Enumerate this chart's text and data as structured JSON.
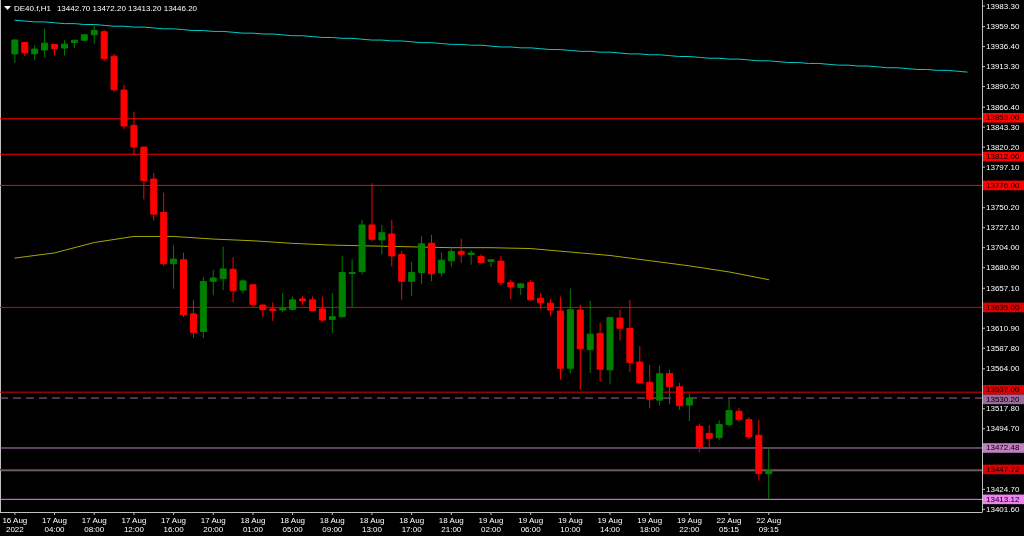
{
  "chart_data": {
    "type": "candlestick",
    "title": "DE40.f,H1",
    "subtitle": "13442.70 13472.20 13413.20 13446.20",
    "categories": [
      "16 Aug 2022",
      null,
      null,
      null,
      "17 Aug 04:00",
      null,
      null,
      null,
      "17 Aug 08:00",
      null,
      null,
      null,
      "17 Aug 12:00",
      null,
      null,
      null,
      "17 Aug 16:00",
      null,
      null,
      null,
      "17 Aug 20:00",
      null,
      null,
      null,
      "18 Aug 01:00",
      null,
      null,
      null,
      "18 Aug 05:00",
      null,
      null,
      null,
      "18 Aug 09:00",
      null,
      null,
      null,
      "18 Aug 13:00",
      null,
      null,
      null,
      "18 Aug 17:00",
      null,
      null,
      null,
      "18 Aug 21:00",
      null,
      null,
      null,
      "19 Aug 02:00",
      null,
      null,
      null,
      "19 Aug 06:00",
      null,
      null,
      null,
      "19 Aug 10:00",
      null,
      null,
      null,
      "19 Aug 14:00",
      null,
      null,
      null,
      "19 Aug 18:00",
      null,
      null,
      null,
      "19 Aug 22:00",
      null,
      null,
      null,
      "22 Aug 05:15",
      null,
      null,
      null,
      "22 Aug 09:15",
      null,
      null,
      null,
      null,
      null,
      null,
      null,
      null,
      null,
      null,
      null,
      null,
      null,
      null,
      null,
      null,
      null,
      null,
      null,
      null
    ],
    "ohlc": [
      [
        13928.0,
        13944.5,
        13917.5,
        13944.1
      ],
      [
        13941.2,
        13942.0,
        13925.4,
        13929.4
      ],
      [
        13928.3,
        13938.1,
        13921.2,
        13933.6
      ],
      [
        13932.5,
        13957.3,
        13924.3,
        13940.4
      ],
      [
        13938.9,
        13939.5,
        13926.1,
        13934.0
      ],
      [
        13934.8,
        13943.8,
        13926.1,
        13939.3
      ],
      [
        13941.2,
        13944.5,
        13934.8,
        13943.8
      ],
      [
        13943.8,
        13951.0,
        13943.0,
        13950.2
      ],
      [
        13950.2,
        13960.7,
        13939.3,
        13955.1
      ],
      [
        13953.6,
        13955.9,
        13919.7,
        13922.7
      ],
      [
        13925.4,
        13928.0,
        13883.9,
        13886.5
      ],
      [
        13886.2,
        13892.2,
        13841.3,
        13844.7
      ],
      [
        13845.5,
        13861.3,
        13811.3,
        13820.3
      ],
      [
        13820.3,
        13821.0,
        13760.0,
        13781.5
      ],
      [
        13783.4,
        13790.2,
        13735.2,
        13742.8
      ],
      [
        13744.7,
        13767.6,
        13682.5,
        13685.5
      ],
      [
        13685.5,
        13706.6,
        13656.6,
        13690.8
      ],
      [
        13690.0,
        13698.3,
        13623.8,
        13626.7
      ],
      [
        13627.5,
        13643.7,
        13599.6,
        13606.1
      ],
      [
        13607.2,
        13670.1,
        13599.6,
        13664.8
      ],
      [
        13665.1,
        13678.4,
        13649.0,
        13669.0
      ],
      [
        13668.2,
        13705.1,
        13655.0,
        13679.5
      ],
      [
        13679.1,
        13693.1,
        13640.8,
        13654.3
      ],
      [
        13655.0,
        13667.4,
        13651.3,
        13665.6
      ],
      [
        13661.1,
        13661.5,
        13635.4,
        13638.5
      ],
      [
        13637.7,
        13638.0,
        13623.4,
        13632.4
      ],
      [
        13633.2,
        13640.8,
        13619.3,
        13631.3
      ],
      [
        13632.0,
        13652.0,
        13629.4,
        13634.0
      ],
      [
        13632.8,
        13647.5,
        13631.7,
        13643.7
      ],
      [
        13644.8,
        13647.9,
        13638.0,
        13642.5
      ],
      [
        13643.7,
        13647.5,
        13630.5,
        13631.3
      ],
      [
        13633.2,
        13647.5,
        13618.1,
        13620.4
      ],
      [
        13621.1,
        13651.3,
        13605.3,
        13624.2
      ],
      [
        13624.2,
        13694.5,
        13623.5,
        13675.3
      ],
      [
        13674.6,
        13690.8,
        13635.4,
        13675.3
      ],
      [
        13676.4,
        13736.0,
        13673.0,
        13730.3
      ],
      [
        13730.3,
        13778.5,
        13711.4,
        13713.7
      ],
      [
        13713.0,
        13730.3,
        13696.4,
        13721.3
      ],
      [
        13719.8,
        13736.0,
        13682.1,
        13694.5
      ],
      [
        13696.1,
        13700.2,
        13643.7,
        13665.1
      ],
      [
        13665.1,
        13687.7,
        13648.2,
        13675.3
      ],
      [
        13675.3,
        13717.1,
        13661.7,
        13708.5
      ],
      [
        13709.2,
        13719.0,
        13665.1,
        13673.8
      ],
      [
        13675.0,
        13698.3,
        13670.8,
        13689.6
      ],
      [
        13688.9,
        13703.2,
        13682.1,
        13699.5
      ],
      [
        13699.8,
        13714.5,
        13686.6,
        13696.4
      ],
      [
        13696.1,
        13700.9,
        13684.3,
        13697.9
      ],
      [
        13693.8,
        13696.4,
        13685.9,
        13687.0
      ],
      [
        13688.2,
        13690.8,
        13681.4,
        13690.0
      ],
      [
        13688.5,
        13694.5,
        13660.6,
        13664.0
      ],
      [
        13663.7,
        13667.1,
        13644.5,
        13658.8
      ],
      [
        13658.0,
        13663.0,
        13649.3,
        13662.2
      ],
      [
        13663.7,
        13667.1,
        13643.0,
        13643.7
      ],
      [
        13645.6,
        13651.3,
        13633.5,
        13640.3
      ],
      [
        13639.9,
        13644.5,
        13624.9,
        13632.0
      ],
      [
        13630.9,
        13647.5,
        13551.5,
        13564.6
      ],
      [
        13564.6,
        13656.9,
        13559.0,
        13632.4
      ],
      [
        13632.0,
        13638.0,
        13540.2,
        13587.2
      ],
      [
        13586.1,
        13642.5,
        13559.0,
        13604.1
      ],
      [
        13604.9,
        13617.4,
        13549.6,
        13563.5
      ],
      [
        13562.8,
        13624.0,
        13545.9,
        13623.4
      ],
      [
        13622.7,
        13632.4,
        13596.7,
        13610.9
      ],
      [
        13610.6,
        13643.7,
        13560.1,
        13571.4
      ],
      [
        13571.8,
        13590.3,
        13547.3,
        13547.7
      ],
      [
        13548.5,
        13568.5,
        13518.3,
        13528.9
      ],
      [
        13527.8,
        13567.7,
        13521.7,
        13558.3
      ],
      [
        13558.6,
        13562.8,
        13522.8,
        13543.6
      ],
      [
        13543.2,
        13547.7,
        13516.8,
        13521.4
      ],
      [
        13522.1,
        13536.0,
        13503.6,
        13530.4
      ],
      [
        13497.6,
        13500.7,
        13467.5,
        13473.6
      ],
      [
        13489.4,
        13498.8,
        13473.6,
        13483.7
      ],
      [
        13484.4,
        13504.4,
        13481.8,
        13499.6
      ],
      [
        13499.6,
        13528.9,
        13497.6,
        13515.7
      ],
      [
        13514.9,
        13518.8,
        13502.5,
        13505.2
      ],
      [
        13505.2,
        13508.1,
        13482.6,
        13485.6
      ],
      [
        13487.1,
        13505.2,
        13434.7,
        13443.1
      ],
      [
        13442.7,
        13472.2,
        13413.2,
        13446.2
      ],
      null,
      null,
      null,
      null,
      null,
      null,
      null,
      null,
      null,
      null,
      null,
      null,
      null,
      null,
      null,
      null,
      null,
      null,
      null,
      null
    ],
    "colors": [
      "#008000",
      "#ff0000",
      "#008000",
      "#008000",
      "#ff0000",
      "#008000",
      "#008000",
      "#008000",
      "#008000",
      "#ff0000",
      "#ff0000",
      "#ff0000",
      "#ff0000",
      "#ff0000",
      "#ff0000",
      "#ff0000",
      "#008000",
      "#ff0000",
      "#ff0000",
      "#008000",
      "#008000",
      "#008000",
      "#ff0000",
      "#008000",
      "#ff0000",
      "#ff0000",
      "#ff0000",
      "#008000",
      "#008000",
      "#ff0000",
      "#ff0000",
      "#ff0000",
      "#008000",
      "#008000",
      "#008000",
      "#008000",
      "#ff0000",
      "#008000",
      "#ff0000",
      "#ff0000",
      "#008000",
      "#008000",
      "#ff0000",
      "#008000",
      "#008000",
      "#ff0000",
      "#008000",
      "#ff0000",
      "#008000",
      "#ff0000",
      "#ff0000",
      "#008000",
      "#ff0000",
      "#ff0000",
      "#ff0000",
      "#ff0000",
      "#008000",
      "#ff0000",
      "#008000",
      "#ff0000",
      "#008000",
      "#ff0000",
      "#ff0000",
      "#ff0000",
      "#ff0000",
      "#008000",
      "#ff0000",
      "#ff0000",
      "#008000",
      "#ff0000",
      "#ff0000",
      "#008000",
      "#008000",
      "#ff0000",
      "#ff0000",
      "#ff0000",
      "#008000",
      null,
      null,
      null,
      null,
      null,
      null,
      null,
      null,
      null,
      null,
      null,
      null,
      null,
      null,
      null,
      null,
      null,
      null,
      null,
      null
    ],
    "series": [
      {
        "type": "line",
        "color": "#00cccc",
        "values": [
          13967,
          13966,
          13965,
          13965,
          13964,
          13963,
          13963,
          13962,
          13962,
          13961,
          13960,
          13960,
          13959,
          13959,
          13958,
          13957,
          13957,
          13956,
          13955,
          13955,
          13954,
          13954,
          13953,
          13952,
          13952,
          13951,
          13951,
          13950,
          13949,
          13949,
          13948,
          13947,
          13947,
          13946,
          13946,
          13945,
          13944,
          13944,
          13943,
          13943,
          13942,
          13941,
          13941,
          13940,
          13939,
          13939,
          13938,
          13938,
          13937,
          13936,
          13936,
          13935,
          13935,
          13934,
          13933,
          13933,
          13932,
          13931,
          13931,
          13930,
          13930,
          13929,
          13928,
          13928,
          13927,
          13927,
          13926,
          13925,
          13925,
          13924,
          13923,
          13923,
          13922,
          13922,
          13921,
          13920,
          13920,
          13919,
          13918,
          13918,
          13917,
          13917,
          13916,
          13915,
          13915,
          13914,
          13914,
          13913,
          13912,
          13912,
          13911,
          13910,
          13910,
          13909,
          13909,
          13908,
          13907
        ]
      },
      {
        "type": "line",
        "color": "#a8a800",
        "x": [
          "16 Aug 2022",
          "17 Aug 04:00",
          "17 Aug 08:00",
          "17 Aug 12:00",
          "17 Aug 16:00",
          "17 Aug 20:00",
          "18 Aug 01:00",
          "18 Aug 05:00",
          "18 Aug 09:00",
          "18 Aug 13:00",
          "18 Aug 17:00",
          "18 Aug 21:00",
          "19 Aug 02:00",
          "19 Aug 06:00",
          "19 Aug 10:00",
          "19 Aug 14:00",
          "19 Aug 18:00",
          "19 Aug 22:00",
          "22 Aug 05:15",
          "22 Aug 09:15"
        ],
        "values": [
          13692,
          13698,
          13710,
          13717,
          13717,
          13714,
          13712,
          13709,
          13707,
          13706,
          13705,
          13704,
          13704,
          13703,
          13699,
          13695,
          13689,
          13683,
          13676,
          13667
        ]
      }
    ],
    "ylim": [
      13398.5,
      13988.0
    ],
    "yticks": [
      {
        "value": 13983.3,
        "label": "13983.30"
      },
      {
        "value": 13959.5,
        "label": "13959.50"
      },
      {
        "value": 13936.4,
        "label": "13936.40"
      },
      {
        "value": 13913.3,
        "label": "13913.30"
      },
      {
        "value": 13890.2,
        "label": "13890.20"
      },
      {
        "value": 13866.4,
        "label": "13866.40"
      },
      {
        "value": 13843.3,
        "label": "13843.30"
      },
      {
        "value": 13820.2,
        "label": "13820.20"
      },
      {
        "value": 13797.1,
        "label": "13797.10"
      },
      {
        "value": 13750.2,
        "label": "13750.20"
      },
      {
        "value": 13727.1,
        "label": "13727.10"
      },
      {
        "value": 13704,
        "label": "13704.00"
      },
      {
        "value": 13680.9,
        "label": "13680.90"
      },
      {
        "value": 13657.1,
        "label": "13657.10"
      },
      {
        "value": 13610.9,
        "label": "13610.90"
      },
      {
        "value": 13587.8,
        "label": "13587.80"
      },
      {
        "value": 13564,
        "label": "13564.00"
      },
      {
        "value": 13517.8,
        "label": "13517.80"
      },
      {
        "value": 13494.7,
        "label": "13494.70"
      },
      {
        "value": 13424.7,
        "label": "13424.70"
      },
      {
        "value": 13401.6,
        "label": "13401.60"
      }
    ],
    "ref_lines": [
      {
        "axis": "y",
        "value": 13853,
        "label": "13853.00",
        "color": "#ff0000"
      },
      {
        "axis": "y",
        "value": 13812,
        "label": "13812.00",
        "color": "#ff0000"
      },
      {
        "axis": "y",
        "value": 13776,
        "label": "13776.00",
        "color": "#ff0000"
      },
      {
        "axis": "y",
        "value": 13635,
        "label": "13635.00",
        "color": "#dd0000"
      },
      {
        "axis": "y",
        "value": 13537,
        "label": "13537.00",
        "color": "#dd0000"
      },
      {
        "axis": "y",
        "value": 13530.2,
        "label": "13530.20",
        "color": "#9a6a9a",
        "line_style": "dashed"
      },
      {
        "axis": "y",
        "value": 13472.48,
        "label": "13472.48",
        "color": "#c080c0"
      },
      {
        "axis": "y",
        "value": 13447.72,
        "label": "13447.72",
        "color": "#dd0000"
      },
      {
        "axis": "y",
        "value": 13446.2,
        "color": "#808080"
      },
      {
        "axis": "y",
        "value": 13413.12,
        "label": "13413.12",
        "color": "#ee82ee"
      }
    ]
  }
}
